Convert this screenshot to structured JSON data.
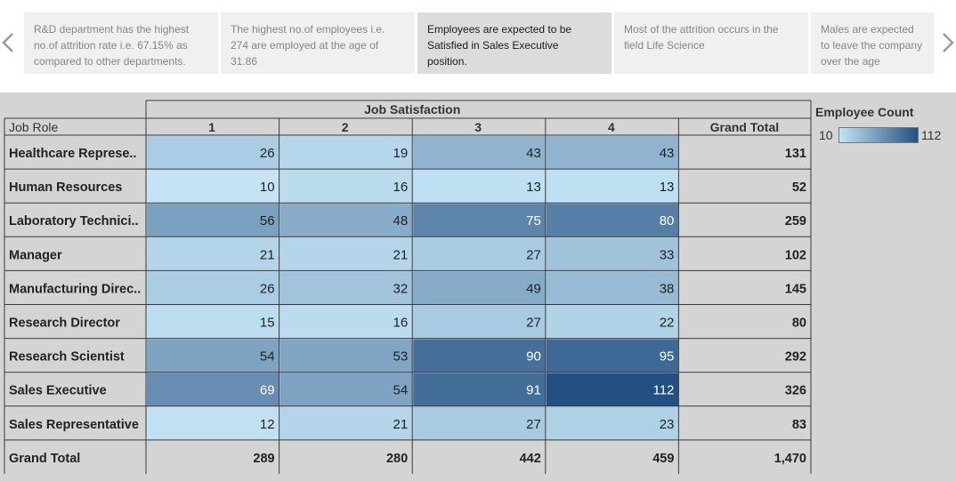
{
  "story_points": [
    "R&D department has the highest no.of attrition rate i.e. 67.15% as compared to other departments.",
    "The highest no.of employees i.e. 274 are employed at the age of 31.86",
    "Employees are expected to be Satisfied in Sales Executive position.",
    "Most of the attrition occurs in the field Life Science",
    "Males are expected to leave the company over the age"
  ],
  "active_story_point": 2,
  "colors": {
    "scale_low": "#c4e4f5",
    "scale_high": "#234f82",
    "gridline": "#3a3a3a",
    "background": "#d4d4d4"
  },
  "legend": {
    "title": "Employee Count",
    "min_label": "10",
    "max_label": "112"
  },
  "chart_data": {
    "type": "heatmap",
    "title": "Job Satisfaction",
    "row_header": "Job Role",
    "columns": [
      "1",
      "2",
      "3",
      "4"
    ],
    "total_label": "Grand Total",
    "rows": [
      {
        "label": "Healthcare Represe..",
        "values": [
          26,
          19,
          43,
          43
        ],
        "total": "131"
      },
      {
        "label": "Human Resources",
        "values": [
          10,
          16,
          13,
          13
        ],
        "total": "52"
      },
      {
        "label": "Laboratory Technici..",
        "values": [
          56,
          48,
          75,
          80
        ],
        "total": "259"
      },
      {
        "label": "Manager",
        "values": [
          21,
          21,
          27,
          33
        ],
        "total": "102"
      },
      {
        "label": "Manufacturing Direc..",
        "values": [
          26,
          32,
          49,
          38
        ],
        "total": "145"
      },
      {
        "label": "Research Director",
        "values": [
          15,
          16,
          27,
          22
        ],
        "total": "80"
      },
      {
        "label": "Research Scientist",
        "values": [
          54,
          53,
          90,
          95
        ],
        "total": "292"
      },
      {
        "label": "Sales Executive",
        "values": [
          69,
          54,
          91,
          112
        ],
        "total": "326"
      },
      {
        "label": "Sales Representative",
        "values": [
          12,
          21,
          27,
          23
        ],
        "total": "83"
      }
    ],
    "grand_total_row": {
      "label": "Grand Total",
      "values": [
        "289",
        "280",
        "442",
        "459"
      ],
      "total": "1,470"
    },
    "color_range": [
      10,
      112
    ]
  }
}
